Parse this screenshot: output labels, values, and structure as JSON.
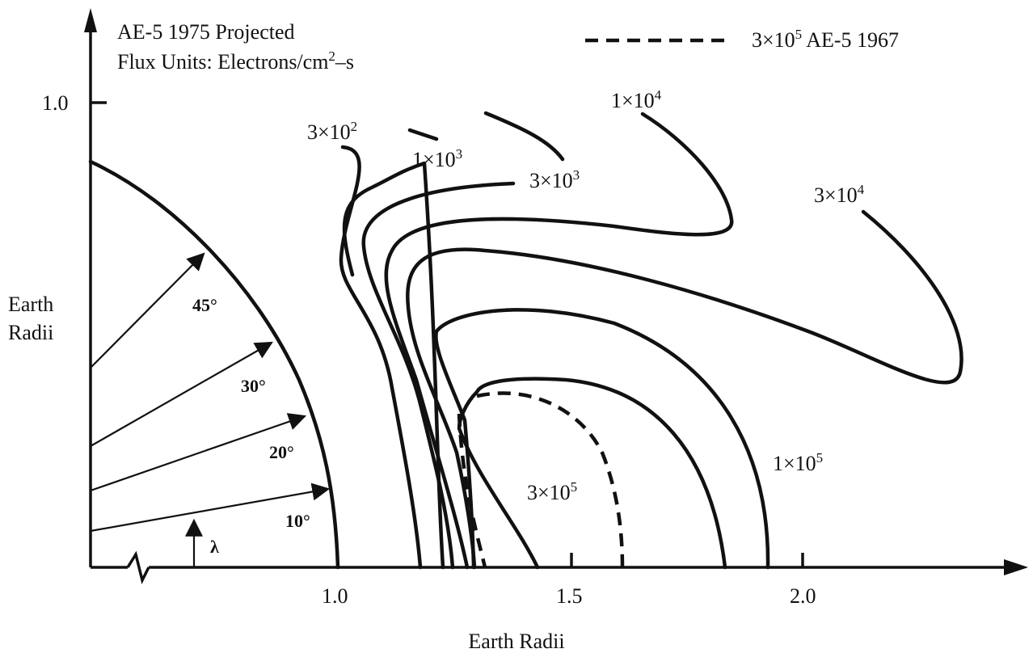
{
  "header": {
    "line1": "AE-5 1975 Projected",
    "line2_prefix": "Flux Units: Electrons/cm",
    "line2_exp": "2",
    "line2_suffix": "–s"
  },
  "legend": {
    "text_prefix": "3×10",
    "text_exp": "5",
    "text_suffix": " AE-5 1967"
  },
  "axes": {
    "x_label": "Earth Radii",
    "y_label_line1": "Earth",
    "y_label_line2": "Radii",
    "x_ticks": [
      "1.0",
      "1.5",
      "2.0"
    ],
    "y_ticks": [
      "1.0"
    ]
  },
  "contours": [
    {
      "mantissa": "3×10",
      "exp": "2"
    },
    {
      "mantissa": "1×10",
      "exp": "3"
    },
    {
      "mantissa": "3×10",
      "exp": "3"
    },
    {
      "mantissa": "1×10",
      "exp": "4"
    },
    {
      "mantissa": "3×10",
      "exp": "4"
    },
    {
      "mantissa": "1×10",
      "exp": "5"
    },
    {
      "mantissa": "3×10",
      "exp": "5"
    }
  ],
  "latitudes": [
    "45°",
    "30°",
    "20°",
    "10°"
  ],
  "lambda_symbol": "λ"
}
